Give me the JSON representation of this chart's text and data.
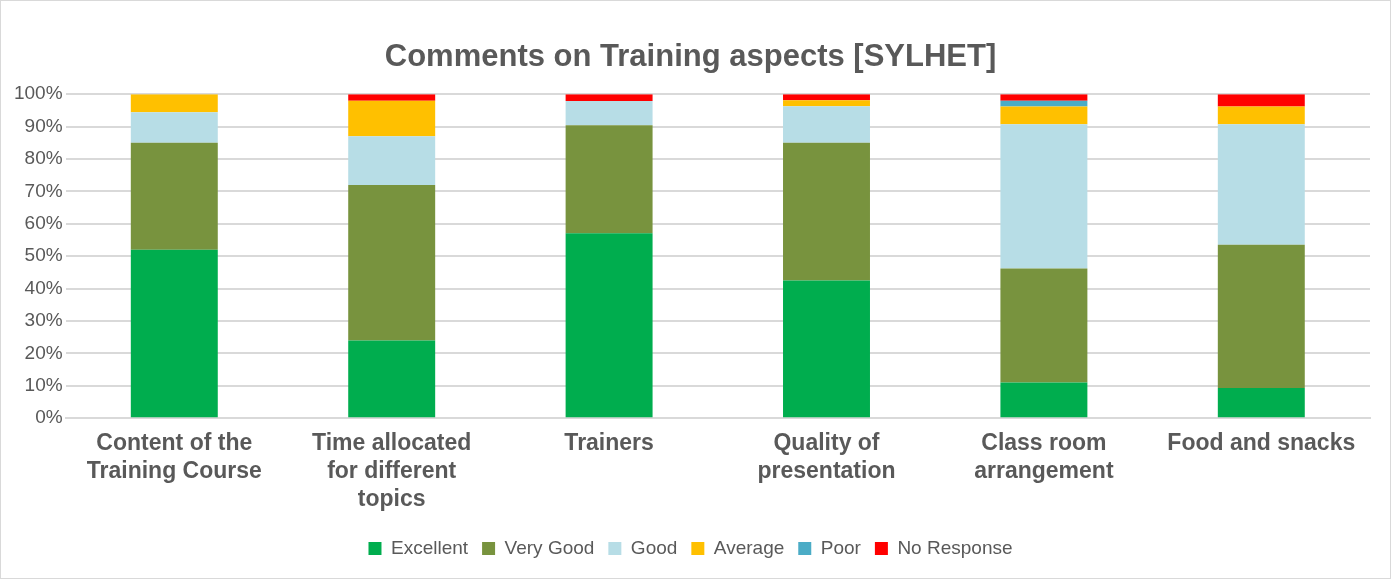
{
  "chart_data": {
    "type": "bar",
    "title": "Comments on Training aspects [SYLHET]",
    "categories": [
      "Content of the Training Course",
      "Time allocated for different topics",
      "Trainers",
      "Quality of presentation",
      "Class room arrangement",
      "Food and snacks"
    ],
    "stacked": true,
    "series": [
      {
        "name": "Excellent",
        "color": "#00ad4e",
        "values": [
          52,
          24,
          57.1,
          42.5,
          11,
          9.3
        ]
      },
      {
        "name": "Very Good",
        "color": "#78933e",
        "values": [
          33,
          48,
          33.3,
          42.5,
          35.2,
          44.2
        ]
      },
      {
        "name": "Good",
        "color": "#b7dde6",
        "values": [
          9.4,
          15,
          7.5,
          11.3,
          44.5,
          37.2
        ]
      },
      {
        "name": "Average",
        "color": "#ffc000",
        "values": [
          5.6,
          11,
          0,
          1.8,
          5.5,
          5.5
        ]
      },
      {
        "name": "Poor",
        "color": "#4bacc6",
        "values": [
          0,
          0,
          0,
          0,
          1.8,
          0
        ]
      },
      {
        "name": "No Response",
        "color": "#ff0000",
        "values": [
          0,
          2,
          2.1,
          1.9,
          2,
          3.8
        ]
      }
    ],
    "ylim": [
      0,
      100
    ],
    "yticks": [
      {
        "value": 0,
        "label": "0%"
      },
      {
        "value": 10,
        "label": "10%"
      },
      {
        "value": 20,
        "label": "20%"
      },
      {
        "value": 30,
        "label": "30%"
      },
      {
        "value": 40,
        "label": "40%"
      },
      {
        "value": 50,
        "label": "50%"
      },
      {
        "value": 60,
        "label": "60%"
      },
      {
        "value": 70,
        "label": "70%"
      },
      {
        "value": 80,
        "label": "80%"
      },
      {
        "value": 90,
        "label": "90%"
      },
      {
        "value": 100,
        "label": "100%"
      }
    ],
    "grid": "y",
    "legend": "bottom"
  }
}
